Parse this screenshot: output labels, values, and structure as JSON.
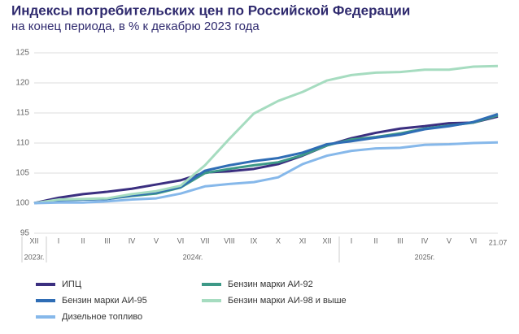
{
  "chart_data": {
    "type": "line",
    "title": "Индексы потребительских цен по Российской Федерации",
    "subtitle": "на конец периода, в % к декабрю 2023 года",
    "categories": [
      "XII",
      "I",
      "II",
      "III",
      "IV",
      "V",
      "VI",
      "VII",
      "VIII",
      "IX",
      "X",
      "XI",
      "XII",
      "I",
      "II",
      "III",
      "IV",
      "V",
      "VI",
      "21.07"
    ],
    "year_labels": [
      "2023г.",
      "2024г.",
      "2025г."
    ],
    "ylim": [
      95,
      125
    ],
    "yticks": [
      95,
      100,
      105,
      110,
      115,
      120,
      125
    ],
    "grid": true,
    "legend": "bottom",
    "series": [
      {
        "name": "ИПЦ",
        "color": "#3b2f80",
        "values": [
          100,
          100.9,
          101.5,
          101.9,
          102.4,
          103.1,
          103.8,
          105.1,
          105.3,
          105.7,
          106.5,
          107.9,
          109.6,
          110.8,
          111.7,
          112.4,
          112.8,
          113.3,
          113.4,
          114.4
        ]
      },
      {
        "name": "Бензин марки АИ-92",
        "color": "#3d9987",
        "values": [
          100,
          100.5,
          100.6,
          100.7,
          101.2,
          101.6,
          102.6,
          105.0,
          105.7,
          106.3,
          106.8,
          108.0,
          109.6,
          110.6,
          111.0,
          111.6,
          112.4,
          112.9,
          113.4,
          114.6
        ]
      },
      {
        "name": "Бензин марки АИ-95",
        "color": "#2f6db5",
        "values": [
          100,
          100.5,
          100.6,
          100.7,
          101.3,
          101.8,
          102.7,
          105.4,
          106.3,
          107.0,
          107.5,
          108.4,
          109.8,
          110.3,
          110.9,
          111.4,
          112.3,
          112.8,
          113.5,
          114.8
        ]
      },
      {
        "name": "Бензин марки АИ-98 и выше",
        "color": "#a6dcc0",
        "values": [
          100,
          100.6,
          100.7,
          100.8,
          101.5,
          102.0,
          102.9,
          106.3,
          110.7,
          114.9,
          117.0,
          118.5,
          120.4,
          121.3,
          121.7,
          121.8,
          122.2,
          122.2,
          122.7,
          122.8
        ]
      },
      {
        "name": "Дизельное топливо",
        "color": "#86b8ea",
        "values": [
          100,
          100.1,
          100.1,
          100.3,
          100.6,
          100.8,
          101.6,
          102.8,
          103.2,
          103.5,
          104.3,
          106.5,
          107.9,
          108.7,
          109.1,
          109.2,
          109.7,
          109.8,
          110.0,
          110.1
        ]
      }
    ]
  }
}
